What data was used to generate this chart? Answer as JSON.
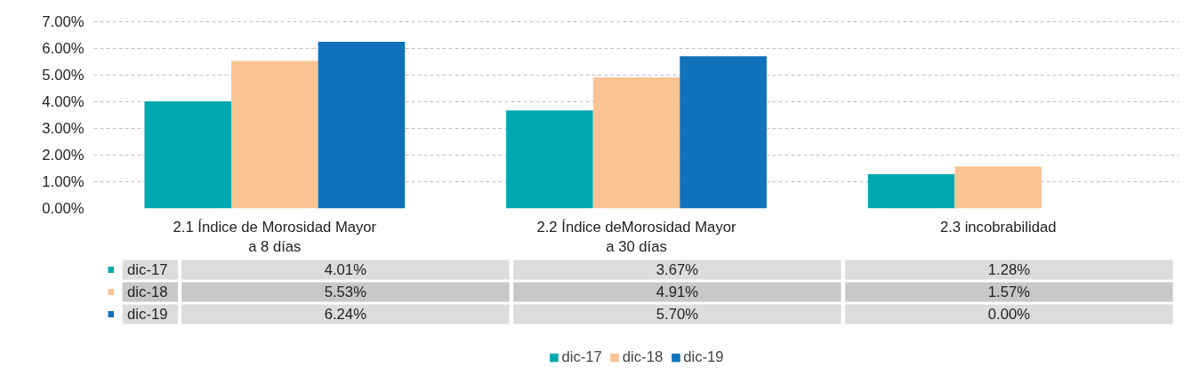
{
  "chart_data": {
    "type": "bar",
    "categories": [
      "2.1 Índice de Morosidad Mayor\na 8 días",
      "2.2 Índice deMorosidad Mayor\na 30 días",
      "2.3 incobrabilidad"
    ],
    "series": [
      {
        "name": "dic-17",
        "color": "#00a8b0",
        "values": [
          4.01,
          3.67,
          1.28
        ],
        "value_labels": [
          "4.01%",
          "3.67%",
          "1.28%"
        ]
      },
      {
        "name": "dic-18",
        "color": "#f9c394",
        "values": [
          5.53,
          4.91,
          1.57
        ],
        "value_labels": [
          "5.53%",
          "4.91%",
          "1.57%"
        ]
      },
      {
        "name": "dic-19",
        "color": "#1072ba",
        "values": [
          6.24,
          5.7,
          0.0
        ],
        "value_labels": [
          "6.24%",
          "5.70%",
          "0.00%"
        ]
      }
    ],
    "ylim": [
      0,
      7
    ],
    "yticks": [
      {
        "value": 0,
        "label": "0.00%"
      },
      {
        "value": 1,
        "label": "1.00%"
      },
      {
        "value": 2,
        "label": "2.00%"
      },
      {
        "value": 3,
        "label": "3.00%"
      },
      {
        "value": 4,
        "label": "4.00%"
      },
      {
        "value": 5,
        "label": "5.00%"
      },
      {
        "value": 6,
        "label": "6.00%"
      },
      {
        "value": 7,
        "label": "7.00%"
      }
    ],
    "grid": "y",
    "legend": "bottom"
  }
}
